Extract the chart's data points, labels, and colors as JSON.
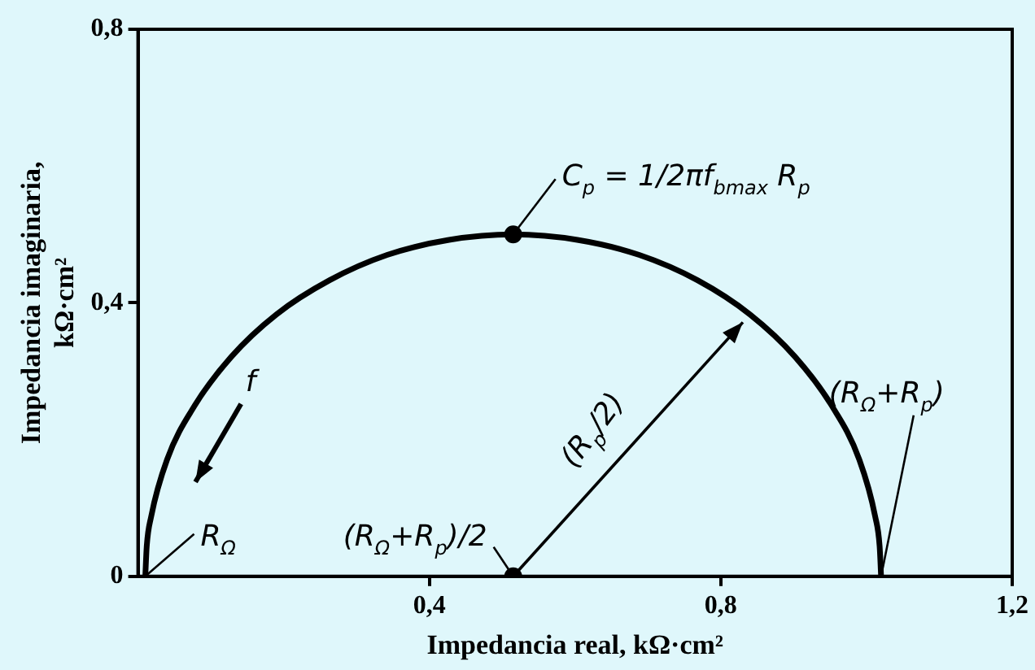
{
  "chart_data": {
    "type": "line",
    "xlabel": "Impedancia real, kΩ·cm²",
    "ylabel": "Impedancia imaginaria, kΩ·cm²",
    "xlim": [
      0,
      1.2
    ],
    "ylim": [
      0,
      0.8
    ],
    "xticks": [
      {
        "value": 0.4,
        "label": "0,4"
      },
      {
        "value": 0.8,
        "label": "0,8"
      },
      {
        "value": 1.2,
        "label": "1,2"
      }
    ],
    "yticks": [
      0,
      {
        "value": 0.4,
        "label": "0,4"
      },
      {
        "value": 0.8,
        "label": "0,8"
      }
    ],
    "grid": false,
    "legend": false,
    "series": [
      {
        "color": "#000000",
        "marker": "none",
        "x": [
          0.01,
          0.012,
          0.018,
          0.04,
          0.078,
          0.128,
          0.19,
          0.263,
          0.342,
          0.427,
          0.515,
          0.603,
          0.688,
          0.768,
          0.84,
          0.902,
          0.952,
          0.99,
          1.012,
          1.018,
          1.02
        ],
        "values": [
          0,
          0.044,
          0.087,
          0.171,
          0.25,
          0.321,
          0.383,
          0.433,
          0.47,
          0.492,
          0.5,
          0.492,
          0.47,
          0.433,
          0.383,
          0.321,
          0.25,
          0.171,
          0.087,
          0.044,
          0
        ]
      },
      {
        "type": "scatter",
        "color": "#000000",
        "marker": "circle",
        "x": [
          0.515,
          0.515
        ],
        "values": [
          0.5,
          0
        ]
      }
    ],
    "annotations": [
      {
        "text": "C$_{p}$ = 1/2πf$_{bmax}$ R$_{p}$",
        "x": 0.515,
        "y": 0.5
      },
      {
        "text": "R$_{Ω}$",
        "x": 0.01,
        "y": 0
      },
      {
        "text": "(R$_{Ω}$+R$_{p}$)/2",
        "x": 0.515,
        "y": 0
      },
      "(R$_{p}$/2)",
      {
        "text": "(R$_{Ω}$+R$_{p}$)",
        "x": 1.02,
        "y": 0
      },
      "f"
    ]
  }
}
